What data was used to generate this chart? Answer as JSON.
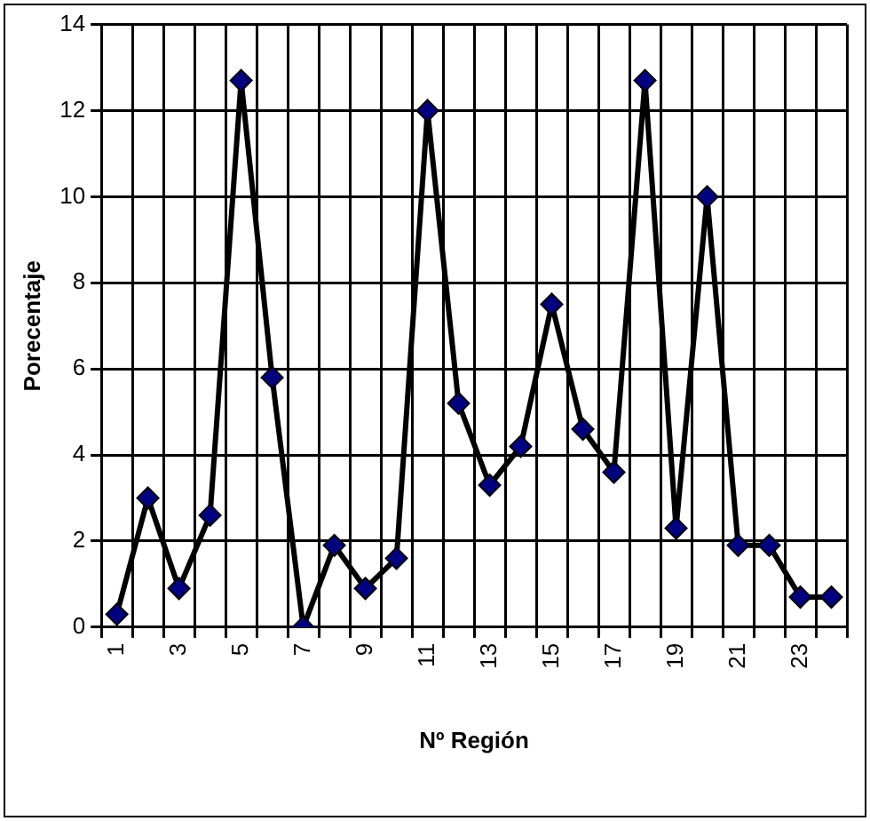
{
  "chart_data": {
    "type": "line",
    "xlabel": "Nº Región",
    "ylabel": "Porecentaje",
    "categories": [
      "1",
      null,
      "3",
      null,
      "5",
      null,
      "7",
      null,
      "9",
      null,
      "11",
      null,
      "13",
      null,
      "15",
      null,
      "17",
      null,
      "19",
      null,
      "21",
      null,
      "23",
      null
    ],
    "series": [
      {
        "color": "#000080",
        "values": [
          0.3,
          3.0,
          0.9,
          2.6,
          12.7,
          5.8,
          0,
          1.9,
          0.9,
          1.6,
          12.0,
          5.2,
          3.3,
          4.2,
          7.5,
          4.6,
          3.6,
          12.7,
          2.3,
          10.0,
          1.9,
          1.9,
          0.7,
          0.7
        ]
      }
    ],
    "ylim": [
      0,
      14
    ],
    "yticks": [
      0,
      2,
      4,
      6,
      8,
      10,
      12,
      14
    ],
    "grid": true,
    "legend": false,
    "marker": "diamond",
    "line_style": "solid"
  }
}
